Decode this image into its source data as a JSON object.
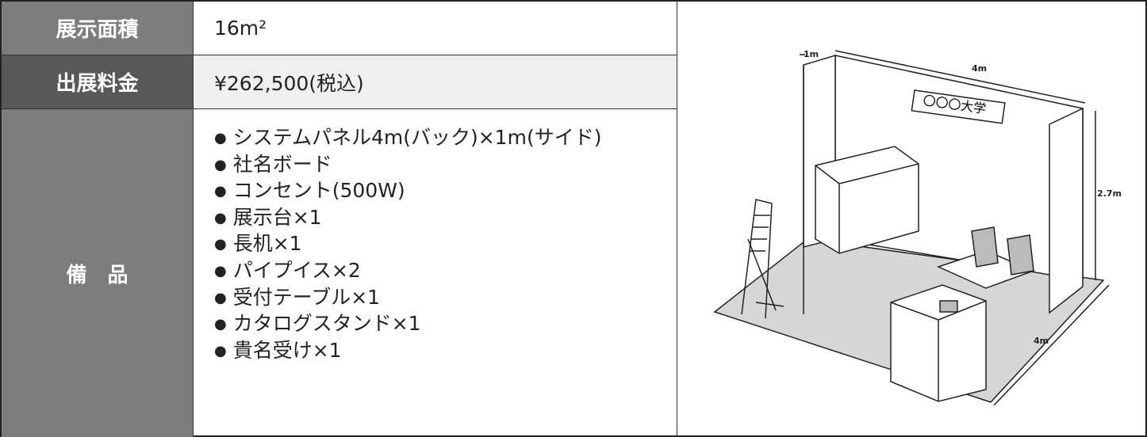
{
  "table": {
    "rows": [
      {
        "label": "展示面積",
        "value": "16m²"
      },
      {
        "label": "出展料金",
        "value": "¥262,500(税込)"
      },
      {
        "label": "備　品",
        "items": [
          "システムパネル4m(バック)×1m(サイド)",
          "社名ボード",
          "コンセント(500W)",
          "展示台×1",
          "長机×1",
          "パイプイス×2",
          "受付テーブル×1",
          "カタログスタンド×1",
          "貴名受け×1"
        ]
      }
    ]
  },
  "illustration": {
    "width_label": "4m",
    "side_label": "1m",
    "depth_label": "4m",
    "height_label": "2.7m",
    "sign": "〇〇〇大学"
  }
}
